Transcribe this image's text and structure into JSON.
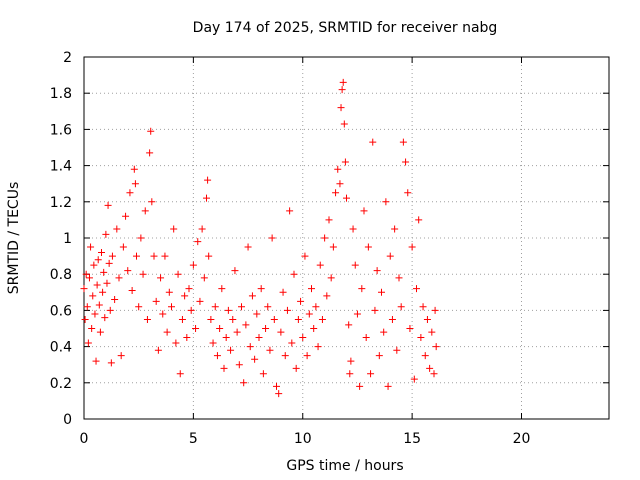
{
  "chart_data": {
    "type": "scatter",
    "title": "Day 174 of 2025, SRMTID for receiver nabg",
    "xlabel": "GPS time / hours",
    "ylabel": "SRMTID / TECUs",
    "xlim": [
      0,
      24
    ],
    "ylim": [
      0,
      2
    ],
    "x_ticks": [
      0,
      5,
      10,
      15,
      20
    ],
    "x_tick_labels": [
      "0",
      "5",
      "10",
      "15",
      "20"
    ],
    "y_ticks": [
      0,
      0.2,
      0.4,
      0.6,
      0.8,
      1,
      1.2,
      1.4,
      1.6,
      1.8,
      2
    ],
    "y_tick_labels": [
      "0",
      "0.2",
      "0.4",
      "0.6",
      "0.8",
      "1",
      "1.2",
      "1.4",
      "1.6",
      "1.8",
      "2"
    ],
    "grid": true,
    "marker": "plus",
    "color": "#ff0000",
    "series": [
      {
        "name": "SRMTID",
        "points": [
          [
            0.0,
            0.72
          ],
          [
            0.05,
            0.55
          ],
          [
            0.1,
            0.8
          ],
          [
            0.15,
            0.62
          ],
          [
            0.2,
            0.42
          ],
          [
            0.25,
            0.78
          ],
          [
            0.3,
            0.95
          ],
          [
            0.35,
            0.5
          ],
          [
            0.4,
            0.68
          ],
          [
            0.45,
            0.85
          ],
          [
            0.5,
            0.58
          ],
          [
            0.55,
            0.32
          ],
          [
            0.6,
            0.74
          ],
          [
            0.65,
            0.88
          ],
          [
            0.7,
            0.63
          ],
          [
            0.75,
            0.48
          ],
          [
            0.8,
            0.92
          ],
          [
            0.85,
            0.7
          ],
          [
            0.9,
            0.81
          ],
          [
            0.95,
            0.56
          ],
          [
            1.0,
            1.02
          ],
          [
            1.05,
            0.75
          ],
          [
            1.1,
            1.18
          ],
          [
            1.15,
            0.86
          ],
          [
            1.2,
            0.6
          ],
          [
            1.25,
            0.31
          ],
          [
            1.3,
            0.9
          ],
          [
            1.4,
            0.66
          ],
          [
            1.5,
            1.05
          ],
          [
            1.6,
            0.78
          ],
          [
            1.7,
            0.35
          ],
          [
            1.8,
            0.95
          ],
          [
            1.9,
            1.12
          ],
          [
            2.0,
            0.82
          ],
          [
            2.1,
            1.25
          ],
          [
            2.2,
            0.71
          ],
          [
            2.3,
            1.38
          ],
          [
            2.35,
            1.3
          ],
          [
            2.4,
            0.9
          ],
          [
            2.5,
            0.62
          ],
          [
            2.6,
            1.0
          ],
          [
            2.7,
            0.8
          ],
          [
            2.8,
            1.15
          ],
          [
            2.9,
            0.55
          ],
          [
            3.0,
            1.47
          ],
          [
            3.05,
            1.59
          ],
          [
            3.1,
            1.2
          ],
          [
            3.2,
            0.9
          ],
          [
            3.3,
            0.65
          ],
          [
            3.4,
            0.38
          ],
          [
            3.5,
            0.78
          ],
          [
            3.6,
            0.58
          ],
          [
            3.7,
            0.9
          ],
          [
            3.8,
            0.48
          ],
          [
            3.9,
            0.7
          ],
          [
            4.0,
            0.62
          ],
          [
            4.1,
            1.05
          ],
          [
            4.2,
            0.42
          ],
          [
            4.3,
            0.8
          ],
          [
            4.4,
            0.25
          ],
          [
            4.5,
            0.55
          ],
          [
            4.6,
            0.68
          ],
          [
            4.7,
            0.45
          ],
          [
            4.8,
            0.72
          ],
          [
            4.9,
            0.6
          ],
          [
            5.0,
            0.85
          ],
          [
            5.1,
            0.5
          ],
          [
            5.2,
            0.98
          ],
          [
            5.3,
            0.65
          ],
          [
            5.4,
            1.05
          ],
          [
            5.5,
            0.78
          ],
          [
            5.6,
            1.22
          ],
          [
            5.65,
            1.32
          ],
          [
            5.7,
            0.9
          ],
          [
            5.8,
            0.55
          ],
          [
            5.9,
            0.42
          ],
          [
            6.0,
            0.62
          ],
          [
            6.1,
            0.35
          ],
          [
            6.2,
            0.5
          ],
          [
            6.3,
            0.72
          ],
          [
            6.4,
            0.28
          ],
          [
            6.5,
            0.45
          ],
          [
            6.6,
            0.6
          ],
          [
            6.7,
            0.38
          ],
          [
            6.8,
            0.55
          ],
          [
            6.9,
            0.82
          ],
          [
            7.0,
            0.48
          ],
          [
            7.1,
            0.3
          ],
          [
            7.2,
            0.62
          ],
          [
            7.3,
            0.2
          ],
          [
            7.4,
            0.52
          ],
          [
            7.5,
            0.95
          ],
          [
            7.6,
            0.4
          ],
          [
            7.7,
            0.68
          ],
          [
            7.8,
            0.33
          ],
          [
            7.9,
            0.58
          ],
          [
            8.0,
            0.45
          ],
          [
            8.1,
            0.72
          ],
          [
            8.2,
            0.25
          ],
          [
            8.3,
            0.5
          ],
          [
            8.4,
            0.62
          ],
          [
            8.5,
            0.38
          ],
          [
            8.6,
            1.0
          ],
          [
            8.7,
            0.55
          ],
          [
            8.8,
            0.18
          ],
          [
            8.9,
            0.14
          ],
          [
            9.0,
            0.48
          ],
          [
            9.1,
            0.7
          ],
          [
            9.2,
            0.35
          ],
          [
            9.3,
            0.6
          ],
          [
            9.4,
            1.15
          ],
          [
            9.5,
            0.42
          ],
          [
            9.6,
            0.8
          ],
          [
            9.7,
            0.28
          ],
          [
            9.8,
            0.55
          ],
          [
            9.9,
            0.65
          ],
          [
            10.0,
            0.45
          ],
          [
            10.1,
            0.9
          ],
          [
            10.2,
            0.35
          ],
          [
            10.3,
            0.58
          ],
          [
            10.4,
            0.72
          ],
          [
            10.5,
            0.5
          ],
          [
            10.6,
            0.62
          ],
          [
            10.7,
            0.4
          ],
          [
            10.8,
            0.85
          ],
          [
            10.9,
            0.55
          ],
          [
            11.0,
            1.0
          ],
          [
            11.1,
            0.68
          ],
          [
            11.2,
            1.1
          ],
          [
            11.3,
            0.78
          ],
          [
            11.4,
            0.95
          ],
          [
            11.5,
            1.25
          ],
          [
            11.6,
            1.38
          ],
          [
            11.7,
            1.3
          ],
          [
            11.75,
            1.72
          ],
          [
            11.8,
            1.82
          ],
          [
            11.85,
            1.86
          ],
          [
            11.9,
            1.63
          ],
          [
            11.95,
            1.42
          ],
          [
            12.0,
            1.22
          ],
          [
            12.1,
            0.52
          ],
          [
            12.15,
            0.25
          ],
          [
            12.2,
            0.32
          ],
          [
            12.3,
            1.05
          ],
          [
            12.4,
            0.85
          ],
          [
            12.5,
            0.58
          ],
          [
            12.6,
            0.18
          ],
          [
            12.7,
            0.72
          ],
          [
            12.8,
            1.15
          ],
          [
            12.9,
            0.45
          ],
          [
            13.0,
            0.95
          ],
          [
            13.1,
            0.25
          ],
          [
            13.2,
            1.53
          ],
          [
            13.3,
            0.6
          ],
          [
            13.4,
            0.82
          ],
          [
            13.5,
            0.35
          ],
          [
            13.6,
            0.7
          ],
          [
            13.7,
            0.48
          ],
          [
            13.8,
            1.2
          ],
          [
            13.9,
            0.18
          ],
          [
            14.0,
            0.9
          ],
          [
            14.1,
            0.55
          ],
          [
            14.2,
            1.05
          ],
          [
            14.3,
            0.38
          ],
          [
            14.4,
            0.78
          ],
          [
            14.5,
            0.62
          ],
          [
            14.6,
            1.53
          ],
          [
            14.7,
            1.42
          ],
          [
            14.8,
            1.25
          ],
          [
            14.9,
            0.5
          ],
          [
            15.0,
            0.95
          ],
          [
            15.1,
            0.22
          ],
          [
            15.2,
            0.72
          ],
          [
            15.3,
            1.1
          ],
          [
            15.4,
            0.45
          ],
          [
            15.5,
            0.62
          ],
          [
            15.6,
            0.35
          ],
          [
            15.7,
            0.55
          ],
          [
            15.8,
            0.28
          ],
          [
            15.9,
            0.48
          ],
          [
            16.0,
            0.25
          ],
          [
            16.05,
            0.6
          ],
          [
            16.1,
            0.4
          ]
        ]
      }
    ]
  }
}
